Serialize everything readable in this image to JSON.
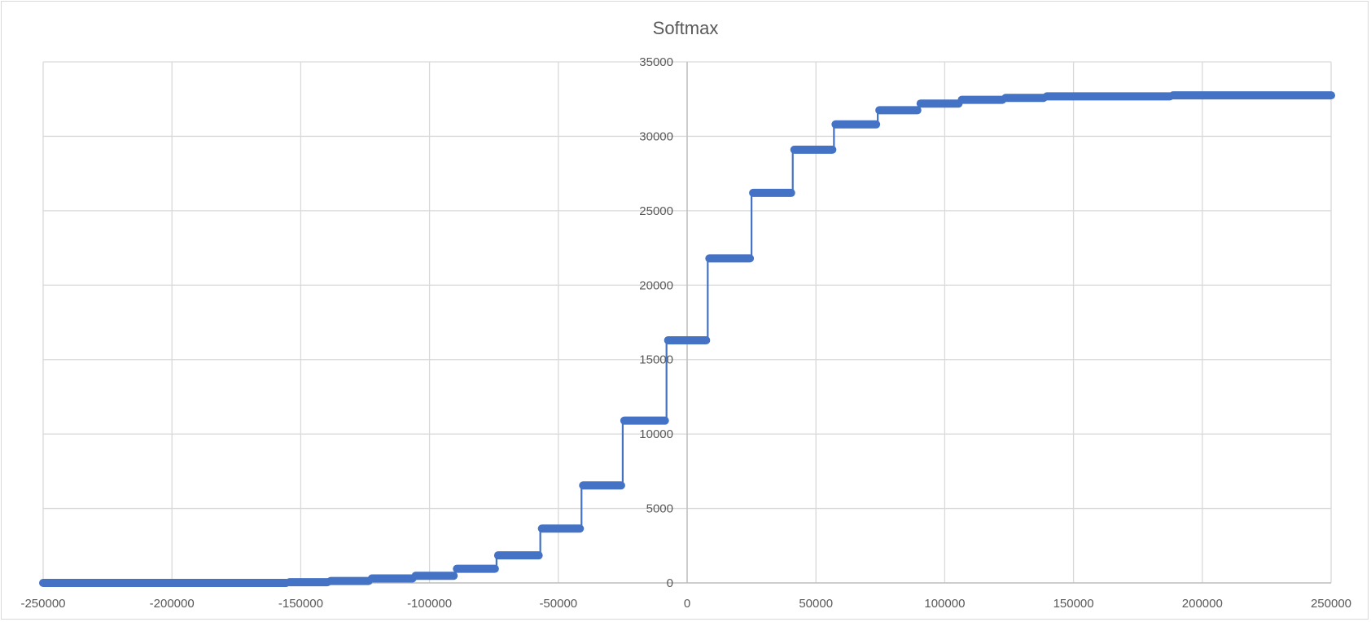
{
  "chart_data": {
    "type": "line",
    "title": "Softmax",
    "xlabel": "",
    "ylabel": "",
    "xlim": [
      -250000,
      250000
    ],
    "ylim": [
      0,
      35000
    ],
    "x_ticks": [
      -250000,
      -200000,
      -150000,
      -100000,
      -50000,
      0,
      50000,
      100000,
      150000,
      200000,
      250000
    ],
    "x_tick_labels": [
      "-250000",
      "-200000",
      "-150000",
      "-100000",
      "-50000",
      "0",
      "50000",
      "100000",
      "150000",
      "200000",
      "250000"
    ],
    "y_ticks": [
      0,
      5000,
      10000,
      15000,
      20000,
      25000,
      30000,
      35000
    ],
    "y_tick_labels": [
      "0",
      "5000",
      "10000",
      "15000",
      "20000",
      "25000",
      "30000",
      "35000"
    ],
    "grid": true,
    "legend": "none",
    "series": [
      {
        "color": "#4472C4",
        "style": "step",
        "steps": [
          {
            "x_start": -250000,
            "x_end": -155000,
            "y": 0
          },
          {
            "x_start": -155000,
            "x_end": -139000,
            "y": 50
          },
          {
            "x_start": -139000,
            "x_end": -123000,
            "y": 130
          },
          {
            "x_start": -123000,
            "x_end": -106000,
            "y": 300
          },
          {
            "x_start": -106000,
            "x_end": -90000,
            "y": 480
          },
          {
            "x_start": -90000,
            "x_end": -74000,
            "y": 950
          },
          {
            "x_start": -74000,
            "x_end": -57000,
            "y": 1850
          },
          {
            "x_start": -57000,
            "x_end": -41000,
            "y": 3650
          },
          {
            "x_start": -41000,
            "x_end": -25000,
            "y": 6550
          },
          {
            "x_start": -25000,
            "x_end": -8000,
            "y": 10900
          },
          {
            "x_start": -8000,
            "x_end": 8000,
            "y": 16300
          },
          {
            "x_start": 8000,
            "x_end": 25000,
            "y": 21800
          },
          {
            "x_start": 25000,
            "x_end": 41000,
            "y": 26200
          },
          {
            "x_start": 41000,
            "x_end": 57000,
            "y": 29100
          },
          {
            "x_start": 57000,
            "x_end": 74000,
            "y": 30800
          },
          {
            "x_start": 74000,
            "x_end": 90000,
            "y": 31750
          },
          {
            "x_start": 90000,
            "x_end": 106000,
            "y": 32200
          },
          {
            "x_start": 106000,
            "x_end": 123000,
            "y": 32450
          },
          {
            "x_start": 123000,
            "x_end": 139000,
            "y": 32580
          },
          {
            "x_start": 139000,
            "x_end": 188000,
            "y": 32680
          },
          {
            "x_start": 188000,
            "x_end": 250000,
            "y": 32750
          }
        ]
      }
    ]
  }
}
